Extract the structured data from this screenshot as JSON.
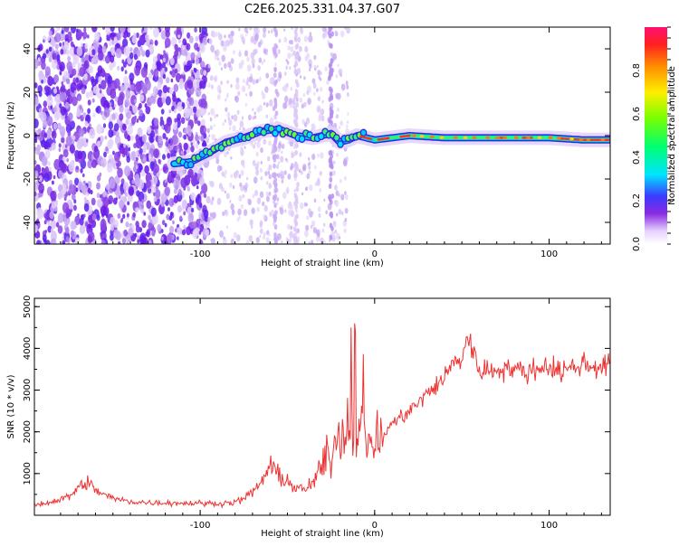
{
  "title": "C2E6.2025.331.04.37.G07",
  "chart_data": [
    {
      "type": "heatmap",
      "name": "spectrogram",
      "xlabel": "Height of straight line (km)",
      "ylabel": "Frequency (Hz)",
      "xlim": [
        -195,
        135
      ],
      "ylim": [
        -50,
        50
      ],
      "xticks": [
        -100,
        0,
        100
      ],
      "xtick_labels": [
        "-100",
        "0",
        "100"
      ],
      "yticks": [
        -40,
        -20,
        0,
        20,
        40
      ],
      "ytick_labels": [
        "-40",
        "-20",
        "0",
        "20",
        "40"
      ],
      "ridge": {
        "x": [
          -115,
          -105,
          -95,
          -85,
          -75,
          -65,
          -55,
          -45,
          -35,
          -25,
          -20,
          -15,
          -10,
          -5,
          0,
          10,
          20,
          40,
          60,
          80,
          100,
          120,
          135
        ],
        "frequency": [
          -13,
          -12,
          -8,
          -3,
          -1,
          2,
          3,
          0,
          -1,
          1,
          -3,
          -2,
          0,
          -1,
          -2,
          -1,
          0,
          -1,
          -1,
          -1,
          -1,
          -2,
          -2
        ]
      },
      "colorbar": {
        "label": "Normalized spectral amplitude",
        "range": [
          0.0,
          1.0
        ],
        "ticks": [
          0.0,
          0.2,
          0.4,
          0.6,
          0.8
        ],
        "tick_labels": [
          "0.0",
          "0.2",
          "0.4",
          "0.6",
          "0.8"
        ]
      }
    },
    {
      "type": "line",
      "name": "snr",
      "xlabel": "Height of straight line (km)",
      "ylabel": "SNR (10 * v/v)",
      "xlim": [
        -195,
        135
      ],
      "ylim": [
        0,
        5200
      ],
      "xticks": [
        -100,
        0,
        100
      ],
      "xtick_labels": [
        "-100",
        "0",
        "100"
      ],
      "yticks": [
        1000,
        2000,
        3000,
        4000,
        5000
      ],
      "ytick_labels": [
        "1000",
        "2000",
        "3000",
        "4000",
        "5000"
      ],
      "color": "#ee3333",
      "series": [
        {
          "name": "SNR",
          "x": [
            -195,
            -185,
            -175,
            -170,
            -165,
            -160,
            -150,
            -140,
            -130,
            -120,
            -110,
            -100,
            -90,
            -80,
            -75,
            -70,
            -65,
            -60,
            -55,
            -50,
            -45,
            -40,
            -35,
            -30,
            -25,
            -20,
            -15,
            -12,
            -10,
            -5,
            0,
            5,
            10,
            15,
            20,
            25,
            30,
            35,
            40,
            45,
            50,
            53,
            55,
            58,
            60,
            65,
            70,
            75,
            80,
            85,
            90,
            95,
            100,
            105,
            110,
            115,
            120,
            125,
            130,
            135
          ],
          "y": [
            250,
            320,
            450,
            650,
            800,
            600,
            400,
            330,
            300,
            300,
            290,
            290,
            280,
            310,
            400,
            550,
            800,
            1150,
            1000,
            800,
            650,
            600,
            800,
            1200,
            1500,
            1950,
            2100,
            2400,
            2000,
            1900,
            1700,
            1900,
            2200,
            2350,
            2500,
            2700,
            2900,
            3100,
            3300,
            3650,
            3750,
            4300,
            4100,
            3700,
            3500,
            3450,
            3500,
            3550,
            3500,
            3450,
            3450,
            3550,
            3600,
            3450,
            3500,
            3550,
            3650,
            3550,
            3600,
            3600
          ]
        }
      ]
    }
  ]
}
